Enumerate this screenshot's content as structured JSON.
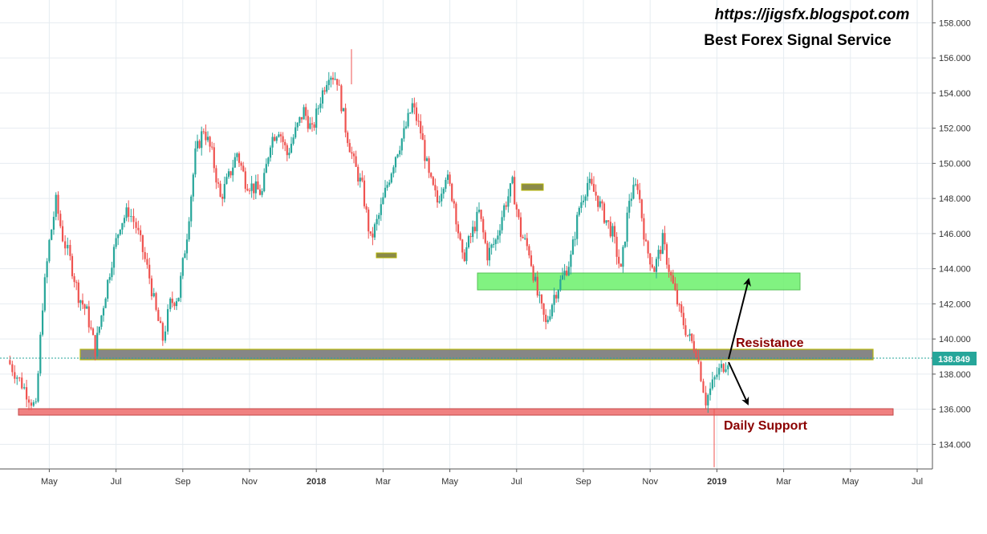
{
  "header": {
    "url": "https://jigsfx.blogspot.com",
    "tagline": "Best Forex Signal Service"
  },
  "annotations": {
    "resistance": "Resistance",
    "support": "Daily Support"
  },
  "price_axis": {
    "ticks": [
      "134.000",
      "136.000",
      "138.000",
      "140.000",
      "142.000",
      "144.000",
      "146.000",
      "148.000",
      "150.000",
      "152.000",
      "154.000",
      "156.000",
      "158.000"
    ],
    "last_price": "138.849"
  },
  "time_axis": {
    "ticks": [
      "May",
      "Jul",
      "Sep",
      "Nov",
      "2018",
      "Mar",
      "May",
      "Jul",
      "Sep",
      "Nov",
      "2019",
      "Mar",
      "May",
      "Jul"
    ],
    "bold": [
      "2018",
      "2019"
    ]
  },
  "colors": {
    "up": "#26a69a",
    "down": "#ef5350",
    "resistance_zone": "#808080",
    "resistance_border": "#b5b500",
    "supply_zone": "#6cf06c",
    "support_zone": "#f07a7a",
    "label_red": "#8b0000",
    "last_price_bg": "#26a69a"
  },
  "chart_data": {
    "type": "candlestick",
    "title": "",
    "ylim": [
      132.6,
      159.3
    ],
    "x_time_range": [
      "2017-04",
      "2019-07"
    ],
    "last_price": 138.849,
    "zones": [
      {
        "label": "Resistance",
        "from": 138.8,
        "to": 139.4,
        "start": "2017-06",
        "end": "2019-06"
      },
      {
        "label": "",
        "from": 143.0,
        "to": 143.9,
        "start": "2018-06",
        "end": "2019-04"
      },
      {
        "label": "Daily Support",
        "from": 135.5,
        "to": 135.9,
        "start": "2017-04",
        "end": "2019-07"
      }
    ],
    "close_path": [
      [
        "2017-04",
        138.8
      ],
      [
        "2017-04",
        137.2
      ],
      [
        "2017-05",
        136.0
      ],
      [
        "2017-05",
        142.0
      ],
      [
        "2017-05",
        145.5
      ],
      [
        "2017-05",
        147.8
      ],
      [
        "2017-05",
        145.8
      ],
      [
        "2017-06",
        144.5
      ],
      [
        "2017-06",
        142.5
      ],
      [
        "2017-06",
        141.5
      ],
      [
        "2017-06",
        139.4
      ],
      [
        "2017-07",
        142.0
      ],
      [
        "2017-07",
        144.5
      ],
      [
        "2017-07",
        146.6
      ],
      [
        "2017-07",
        147.3
      ],
      [
        "2017-08",
        146.4
      ],
      [
        "2017-08",
        145.0
      ],
      [
        "2017-08",
        143.5
      ],
      [
        "2017-08",
        141.5
      ],
      [
        "2017-08",
        140.0
      ],
      [
        "2017-09",
        142.0
      ],
      [
        "2017-09",
        142.5
      ],
      [
        "2017-09",
        146.0
      ],
      [
        "2017-09",
        150.5
      ],
      [
        "2017-10",
        152.0
      ],
      [
        "2017-10",
        150.5
      ],
      [
        "2017-10",
        148.0
      ],
      [
        "2017-10",
        149.2
      ],
      [
        "2017-11",
        150.6
      ],
      [
        "2017-11",
        149.0
      ],
      [
        "2017-11",
        148.6
      ],
      [
        "2017-11",
        148.3
      ],
      [
        "2017-12",
        151.3
      ],
      [
        "2017-12",
        152.0
      ],
      [
        "2017-12",
        150.5
      ],
      [
        "2017-12",
        151.8
      ],
      [
        "2018-01",
        153.0
      ],
      [
        "2018-01",
        151.8
      ],
      [
        "2018-01",
        153.7
      ],
      [
        "2018-01",
        155.2
      ],
      [
        "2018-02",
        154.8
      ],
      [
        "2018-02",
        152.0
      ],
      [
        "2018-02",
        150.0
      ],
      [
        "2018-02",
        148.6
      ],
      [
        "2018-03",
        145.6
      ],
      [
        "2018-03",
        147.0
      ],
      [
        "2018-03",
        148.8
      ],
      [
        "2018-03",
        150.5
      ],
      [
        "2018-04",
        151.7
      ],
      [
        "2018-04",
        153.3
      ],
      [
        "2018-04",
        151.8
      ],
      [
        "2018-04",
        149.2
      ],
      [
        "2018-05",
        147.8
      ],
      [
        "2018-05",
        149.4
      ],
      [
        "2018-05",
        147.8
      ],
      [
        "2018-05",
        144.5
      ],
      [
        "2018-06",
        145.8
      ],
      [
        "2018-06",
        147.2
      ],
      [
        "2018-06",
        144.8
      ],
      [
        "2018-06",
        145.6
      ],
      [
        "2018-07",
        147.5
      ],
      [
        "2018-07",
        148.8
      ],
      [
        "2018-07",
        146.0
      ],
      [
        "2018-07",
        145.0
      ],
      [
        "2018-08",
        142.5
      ],
      [
        "2018-08",
        140.8
      ],
      [
        "2018-08",
        142.5
      ],
      [
        "2018-08",
        143.5
      ],
      [
        "2018-09",
        144.6
      ],
      [
        "2018-09",
        147.5
      ],
      [
        "2018-09",
        148.9
      ],
      [
        "2018-09",
        148.2
      ],
      [
        "2018-10",
        147.0
      ],
      [
        "2018-10",
        146.0
      ],
      [
        "2018-10",
        143.8
      ],
      [
        "2018-10",
        148.0
      ],
      [
        "2018-11",
        148.8
      ],
      [
        "2018-11",
        145.2
      ],
      [
        "2018-11",
        144.0
      ],
      [
        "2018-11",
        145.6
      ],
      [
        "2018-12",
        143.5
      ],
      [
        "2018-12",
        141.6
      ],
      [
        "2018-12",
        140.2
      ],
      [
        "2018-12",
        139.4
      ],
      [
        "2019-01",
        136.5
      ],
      [
        "2019-01",
        138.0
      ],
      [
        "2019-01",
        138.849
      ]
    ],
    "notable_extremes": [
      {
        "time": "2018-01",
        "high": 156.5
      },
      {
        "time": "2019-01",
        "low": 132.7
      }
    ]
  }
}
